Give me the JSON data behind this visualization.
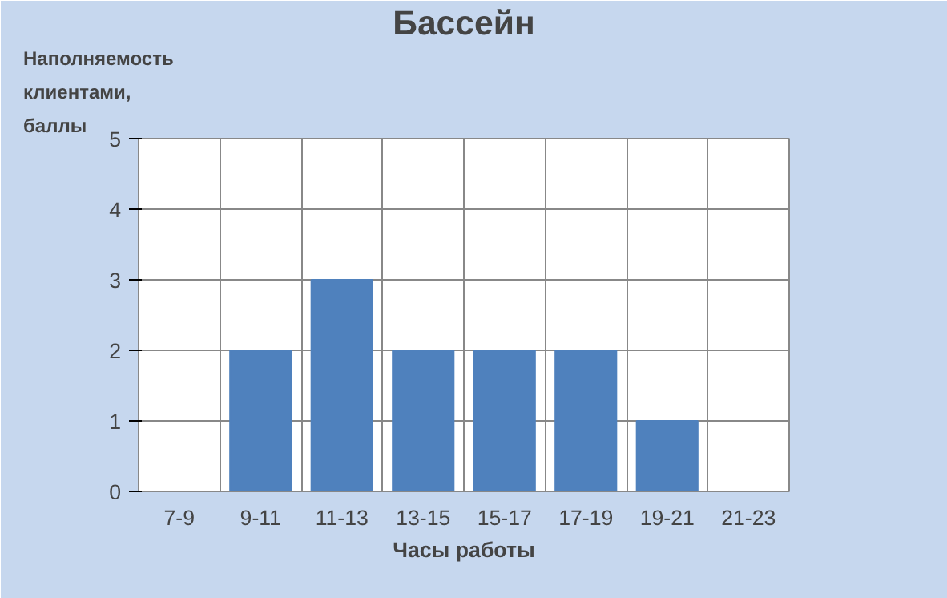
{
  "chart_data": {
    "type": "bar",
    "title": "Бассейн",
    "xlabel": "Часы работы",
    "ylabel": "Наполняемость клиентами, баллы",
    "categories": [
      "7-9",
      "9-11",
      "11-13",
      "13-15",
      "15-17",
      "17-19",
      "19-21",
      "21-23"
    ],
    "values": [
      0,
      2,
      3,
      2,
      2,
      2,
      1,
      0
    ],
    "color": "#4f81bd",
    "ylim": [
      0,
      5
    ],
    "yticks": [
      0,
      1,
      2,
      3,
      4,
      5
    ],
    "grid": true
  }
}
